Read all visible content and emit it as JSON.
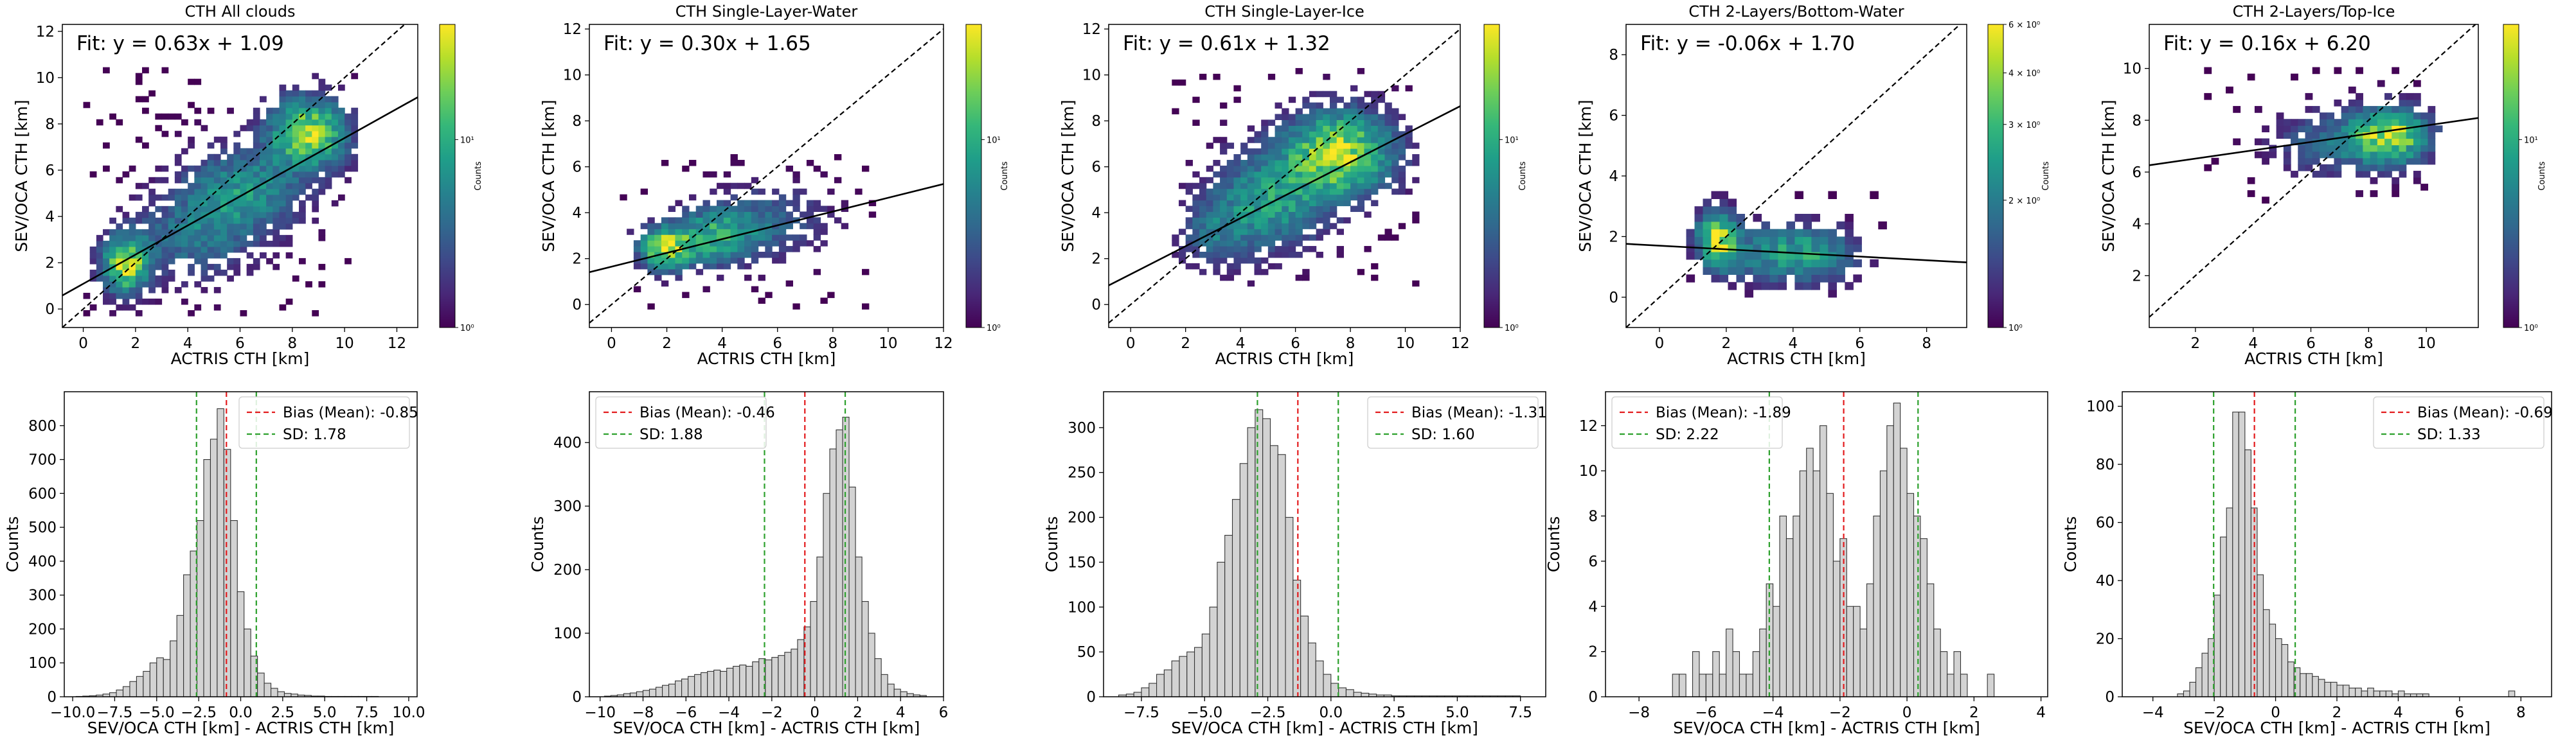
{
  "figure": {
    "scatter_panels": [
      {
        "title": "CTH All clouds",
        "fit_text": "Fit: y = 0.63x + 1.09",
        "xlabel": "ACTRIS CTH [km]",
        "ylabel": "SEV/OCA CTH [km]",
        "colorbar_label": "Counts",
        "colorbar_ticks": [
          "10⁰",
          "10¹"
        ]
      },
      {
        "title": "CTH Single-Layer-Water",
        "fit_text": "Fit: y = 0.30x + 1.65",
        "xlabel": "ACTRIS CTH [km]",
        "ylabel": "SEV/OCA CTH [km]",
        "colorbar_label": "Counts",
        "colorbar_ticks": [
          "10⁰",
          "10¹"
        ]
      },
      {
        "title": "CTH Single-Layer-Ice",
        "fit_text": "Fit: y = 0.61x + 1.32",
        "xlabel": "ACTRIS CTH [km]",
        "ylabel": "SEV/OCA CTH [km]",
        "colorbar_label": "Counts",
        "colorbar_ticks": [
          "10⁰",
          "10¹"
        ]
      },
      {
        "title": "CTH 2-Layers/Bottom-Water",
        "fit_text": "Fit: y = -0.06x + 1.70",
        "xlabel": "ACTRIS CTH [km]",
        "ylabel": "SEV/OCA CTH [km]",
        "colorbar_label": "Counts",
        "colorbar_ticks": [
          "10⁰",
          "2 × 10⁰",
          "3 × 10⁰",
          "4 × 10⁰",
          "6 × 10⁰"
        ]
      },
      {
        "title": "CTH 2-Layers/Top-Ice",
        "fit_text": "Fit: y = 0.16x + 6.20",
        "xlabel": "ACTRIS CTH [km]",
        "ylabel": "SEV/OCA CTH [km]",
        "colorbar_label": "Counts",
        "colorbar_ticks": [
          "10⁰",
          "10¹"
        ]
      }
    ],
    "hist_panels": [
      {
        "xlabel": "SEV/OCA CTH [km] - ACTRIS CTH [km]",
        "ylabel": "Counts",
        "bias_label": "Bias (Mean): -0.85",
        "sd_label": "SD: 1.78"
      },
      {
        "xlabel": "SEV/OCA CTH [km] - ACTRIS CTH [km]",
        "ylabel": "Counts",
        "bias_label": "Bias (Mean): -0.46",
        "sd_label": "SD: 1.88"
      },
      {
        "xlabel": "SEV/OCA CTH [km] - ACTRIS CTH [km]",
        "ylabel": "Counts",
        "bias_label": "Bias (Mean): -1.31",
        "sd_label": "SD: 1.60"
      },
      {
        "xlabel": "SEV/OCA CTH [km] - ACTRIS CTH [km]",
        "ylabel": "Counts",
        "bias_label": "Bias (Mean): -1.89",
        "sd_label": "SD: 2.22"
      },
      {
        "xlabel": "SEV/OCA CTH [km] - ACTRIS CTH [km]",
        "ylabel": "Counts",
        "bias_label": "Bias (Mean): -0.69",
        "sd_label": "SD: 1.33"
      }
    ]
  },
  "colors": {
    "bias_line": "#e31a1c",
    "sd_line": "#2ca02c",
    "bar_fill": "#d3d3d3",
    "bar_edge": "#333333",
    "viridis": [
      "#440154",
      "#482878",
      "#3e4989",
      "#31688e",
      "#26828e",
      "#1f9e89",
      "#35b779",
      "#6ece58",
      "#b5de2b",
      "#fde725"
    ]
  },
  "chart_data": [
    {
      "type": "heatmap",
      "title": "CTH All clouds",
      "xlabel": "ACTRIS CTH [km]",
      "ylabel": "SEV/OCA CTH [km]",
      "xlim": [
        -0.8,
        12.8
      ],
      "ylim": [
        -0.8,
        12.3
      ],
      "xticks": [
        0,
        2,
        4,
        6,
        8,
        10,
        12
      ],
      "yticks": [
        0,
        2,
        4,
        6,
        8,
        10,
        12
      ],
      "fit": {
        "slope": 0.63,
        "intercept": 1.09
      },
      "identity_line": true,
      "density_clusters": [
        {
          "x": 1.5,
          "y": 1.8,
          "sx": 0.6,
          "sy": 0.8,
          "w": 1.0
        },
        {
          "x": 8.5,
          "y": 7.5,
          "sx": 1.0,
          "sy": 1.0,
          "w": 0.95
        },
        {
          "x": 6.0,
          "y": 5.0,
          "sx": 1.5,
          "sy": 1.2,
          "w": 0.5
        },
        {
          "x": 4.0,
          "y": 3.0,
          "sx": 1.5,
          "sy": 1.2,
          "w": 0.35
        }
      ],
      "extent": {
        "x": [
          0.0,
          10.5
        ],
        "y": [
          -0.3,
          10.3
        ]
      },
      "colorbar": {
        "label": "Counts",
        "scale": "log",
        "ticks": [
          "10⁰",
          "10¹"
        ]
      }
    },
    {
      "type": "heatmap",
      "title": "CTH Single-Layer-Water",
      "xlabel": "ACTRIS CTH [km]",
      "ylabel": "SEV/OCA CTH [km]",
      "xlim": [
        -0.8,
        12.0
      ],
      "ylim": [
        -1.0,
        12.2
      ],
      "xticks": [
        0,
        2,
        4,
        6,
        8,
        10,
        12
      ],
      "yticks": [
        0,
        2,
        4,
        6,
        8,
        10,
        12
      ],
      "fit": {
        "slope": 0.3,
        "intercept": 1.65
      },
      "identity_line": true,
      "density_clusters": [
        {
          "x": 1.8,
          "y": 2.3,
          "sx": 0.6,
          "sy": 0.6,
          "w": 1.0
        },
        {
          "x": 3.5,
          "y": 2.8,
          "sx": 1.0,
          "sy": 0.8,
          "w": 0.6
        },
        {
          "x": 5.5,
          "y": 3.5,
          "sx": 1.4,
          "sy": 1.0,
          "w": 0.3
        }
      ],
      "extent": {
        "x": [
          0.3,
          9.5
        ],
        "y": [
          -0.2,
          6.5
        ]
      },
      "colorbar": {
        "label": "Counts",
        "scale": "log",
        "ticks": [
          "10⁰",
          "10¹"
        ]
      }
    },
    {
      "type": "heatmap",
      "title": "CTH Single-Layer-Ice",
      "xlabel": "ACTRIS CTH [km]",
      "ylabel": "SEV/OCA CTH [km]",
      "xlim": [
        -0.8,
        12.0
      ],
      "ylim": [
        -1.0,
        12.2
      ],
      "xticks": [
        0,
        2,
        4,
        6,
        8,
        10,
        12
      ],
      "yticks": [
        0,
        2,
        4,
        6,
        8,
        10,
        12
      ],
      "fit": {
        "slope": 0.61,
        "intercept": 1.32
      },
      "identity_line": true,
      "density_clusters": [
        {
          "x": 7.5,
          "y": 6.5,
          "sx": 1.3,
          "sy": 1.2,
          "w": 1.0
        },
        {
          "x": 5.0,
          "y": 4.5,
          "sx": 1.4,
          "sy": 1.4,
          "w": 0.55
        },
        {
          "x": 3.0,
          "y": 3.0,
          "sx": 1.0,
          "sy": 1.0,
          "w": 0.3
        }
      ],
      "extent": {
        "x": [
          1.5,
          10.5
        ],
        "y": [
          0.8,
          10.3
        ]
      },
      "colorbar": {
        "label": "Counts",
        "scale": "log",
        "ticks": [
          "10⁰",
          "10¹"
        ]
      }
    },
    {
      "type": "heatmap",
      "title": "CTH 2-Layers/Bottom-Water",
      "xlabel": "ACTRIS CTH [km]",
      "ylabel": "SEV/OCA CTH [km]",
      "xlim": [
        -1.0,
        9.2
      ],
      "ylim": [
        -1.0,
        9.0
      ],
      "xticks": [
        0,
        2,
        4,
        6,
        8
      ],
      "yticks": [
        0,
        2,
        4,
        6,
        8
      ],
      "fit": {
        "slope": -0.06,
        "intercept": 1.7
      },
      "identity_line": true,
      "density_clusters": [
        {
          "x": 1.6,
          "y": 1.8,
          "sx": 0.4,
          "sy": 0.6,
          "w": 1.0
        },
        {
          "x": 4.4,
          "y": 1.3,
          "sx": 0.9,
          "sy": 0.6,
          "w": 0.55
        },
        {
          "x": 2.8,
          "y": 1.3,
          "sx": 0.8,
          "sy": 0.6,
          "w": 0.35
        }
      ],
      "extent": {
        "x": [
          0.8,
          7.0
        ],
        "y": [
          0.0,
          3.5
        ]
      },
      "colorbar": {
        "label": "Counts",
        "scale": "log",
        "ticks": [
          "10⁰",
          "2 × 10⁰",
          "3 × 10⁰",
          "4 × 10⁰",
          "6 × 10⁰"
        ]
      }
    },
    {
      "type": "heatmap",
      "title": "CTH 2-Layers/Top-Ice",
      "xlabel": "ACTRIS CTH [km]",
      "ylabel": "SEV/OCA CTH [km]",
      "xlim": [
        0.4,
        11.8
      ],
      "ylim": [
        0.0,
        11.7
      ],
      "xticks": [
        2,
        4,
        6,
        8,
        10
      ],
      "yticks": [
        2,
        4,
        6,
        8,
        10
      ],
      "fit": {
        "slope": 0.16,
        "intercept": 6.2
      },
      "identity_line": true,
      "density_clusters": [
        {
          "x": 8.6,
          "y": 7.3,
          "sx": 0.9,
          "sy": 0.7,
          "w": 1.0
        },
        {
          "x": 6.5,
          "y": 7.0,
          "sx": 1.3,
          "sy": 0.8,
          "w": 0.3
        }
      ],
      "extent": {
        "x": [
          2.3,
          10.5
        ],
        "y": [
          4.8,
          10.0
        ]
      },
      "colorbar": {
        "label": "Counts",
        "scale": "log",
        "ticks": [
          "10⁰",
          "10¹"
        ]
      }
    },
    {
      "type": "bar",
      "xlabel": "SEV/OCA CTH [km] - ACTRIS CTH [km]",
      "ylabel": "Counts",
      "xlim": [
        -10.5,
        10.5
      ],
      "ylim": [
        0,
        900
      ],
      "xticks": [
        -10.0,
        -7.5,
        -5.0,
        -2.5,
        0.0,
        2.5,
        5.0,
        7.5,
        10.0
      ],
      "xtick_labels": [
        "−10.0",
        "−7.5",
        "−5.0",
        "−2.5",
        "0.0",
        "2.5",
        "5.0",
        "7.5",
        "10.0"
      ],
      "yticks": [
        0,
        100,
        200,
        300,
        400,
        500,
        600,
        700,
        800
      ],
      "bin_start": -9.8,
      "bin_width": 0.4,
      "values": [
        1,
        2,
        3,
        5,
        8,
        12,
        20,
        30,
        45,
        60,
        75,
        100,
        115,
        110,
        165,
        240,
        360,
        430,
        520,
        700,
        760,
        850,
        730,
        520,
        310,
        200,
        120,
        70,
        40,
        25,
        15,
        10,
        8,
        5,
        4,
        2,
        2,
        1,
        1,
        1,
        1,
        1,
        1,
        1,
        1
      ],
      "bias": -0.85,
      "sd": 1.78,
      "legend": [
        {
          "name": "Bias (Mean): -0.85",
          "style": "dashed-red"
        },
        {
          "name": "SD: 1.78",
          "style": "dashed-green"
        }
      ],
      "legend_position": "top-right"
    },
    {
      "type": "bar",
      "xlabel": "SEV/OCA CTH [km] - ACTRIS CTH [km]",
      "ylabel": "Counts",
      "xlim": [
        -10.5,
        6.0
      ],
      "ylim": [
        0,
        480
      ],
      "xticks": [
        -10,
        -8,
        -6,
        -4,
        -2,
        0,
        2,
        4,
        6
      ],
      "xtick_labels": [
        "−10",
        "−8",
        "−6",
        "−4",
        "−2",
        "0",
        "2",
        "4",
        "6"
      ],
      "yticks": [
        0,
        100,
        200,
        300,
        400
      ],
      "bin_start": -9.8,
      "bin_width": 0.3,
      "values": [
        1,
        2,
        3,
        5,
        6,
        8,
        10,
        12,
        15,
        18,
        20,
        25,
        28,
        32,
        35,
        38,
        40,
        42,
        40,
        45,
        48,
        50,
        48,
        55,
        60,
        58,
        62,
        65,
        70,
        75,
        90,
        110,
        150,
        220,
        320,
        390,
        420,
        440,
        330,
        220,
        150,
        100,
        60,
        35,
        20,
        12,
        8,
        5,
        3,
        2
      ],
      "bias": -0.46,
      "sd": 1.88,
      "legend": [
        {
          "name": "Bias (Mean): -0.46",
          "style": "dashed-red"
        },
        {
          "name": "SD: 1.88",
          "style": "dashed-green"
        }
      ],
      "legend_position": "top-left"
    },
    {
      "type": "bar",
      "xlabel": "SEV/OCA CTH [km] - ACTRIS CTH [km]",
      "ylabel": "Counts",
      "xlim": [
        -9.0,
        8.5
      ],
      "ylim": [
        0,
        340
      ],
      "xticks": [
        -7.5,
        -5.0,
        -2.5,
        0.0,
        2.5,
        5.0,
        7.5
      ],
      "xtick_labels": [
        "−7.5",
        "−5.0",
        "−2.5",
        "0.0",
        "2.5",
        "5.0",
        "7.5"
      ],
      "yticks": [
        0,
        50,
        100,
        150,
        200,
        250,
        300
      ],
      "bin_start": -8.4,
      "bin_width": 0.3,
      "values": [
        2,
        3,
        5,
        10,
        15,
        25,
        30,
        40,
        45,
        50,
        55,
        70,
        100,
        150,
        180,
        220,
        260,
        300,
        320,
        310,
        280,
        270,
        200,
        130,
        90,
        60,
        40,
        25,
        15,
        10,
        8,
        5,
        4,
        3,
        2,
        2,
        1,
        1,
        1,
        1,
        1,
        1,
        1,
        1,
        1,
        1,
        1,
        1,
        1,
        1,
        1,
        1,
        1
      ],
      "bias": -1.31,
      "sd": 1.6,
      "legend": [
        {
          "name": "Bias (Mean): -1.31",
          "style": "dashed-red"
        },
        {
          "name": "SD: 1.60",
          "style": "dashed-green"
        }
      ],
      "legend_position": "top-right"
    },
    {
      "type": "bar",
      "xlabel": "SEV/OCA CTH [km] - ACTRIS CTH [km]",
      "ylabel": "Counts",
      "xlim": [
        -9.0,
        4.2
      ],
      "ylim": [
        0,
        13.5
      ],
      "xticks": [
        -8,
        -6,
        -4,
        -2,
        0,
        2,
        4
      ],
      "xtick_labels": [
        "−8",
        "−6",
        "−4",
        "−2",
        "0",
        "2",
        "4"
      ],
      "yticks": [
        0,
        2,
        4,
        6,
        8,
        10,
        12
      ],
      "bin_start": -7.0,
      "bin_width": 0.2,
      "values": [
        1,
        1,
        0,
        2,
        1,
        1,
        2,
        1,
        3,
        2,
        1,
        1,
        2,
        3,
        5,
        4,
        8,
        7,
        8,
        10,
        11,
        10,
        12,
        9,
        6,
        7,
        4,
        4,
        3,
        5,
        8,
        10,
        12,
        13,
        11,
        9,
        8,
        7,
        5,
        3,
        2,
        1,
        2,
        1,
        0,
        0,
        0,
        1
      ],
      "bias": -1.89,
      "sd": 2.22,
      "legend": [
        {
          "name": "Bias (Mean): -1.89",
          "style": "dashed-red"
        },
        {
          "name": "SD: 2.22",
          "style": "dashed-green"
        }
      ],
      "legend_position": "top-left"
    },
    {
      "type": "bar",
      "xlabel": "SEV/OCA CTH [km] - ACTRIS CTH [km]",
      "ylabel": "Counts",
      "xlim": [
        -5.0,
        9.0
      ],
      "ylim": [
        0,
        105
      ],
      "xticks": [
        -4,
        -2,
        0,
        2,
        4,
        6,
        8
      ],
      "xtick_labels": [
        "−4",
        "−2",
        "0",
        "2",
        "4",
        "6",
        "8"
      ],
      "yticks": [
        0,
        20,
        40,
        60,
        80,
        100
      ],
      "bin_start": -3.2,
      "bin_width": 0.2,
      "values": [
        1,
        2,
        5,
        10,
        15,
        20,
        35,
        55,
        65,
        98,
        98,
        85,
        65,
        42,
        30,
        25,
        20,
        18,
        12,
        10,
        8,
        8,
        7,
        6,
        5,
        5,
        4,
        4,
        3,
        3,
        2,
        3,
        2,
        2,
        2,
        1,
        2,
        1,
        1,
        1,
        1,
        0,
        0,
        0,
        0,
        0,
        0,
        0,
        0,
        0,
        0,
        0,
        0,
        0,
        2
      ],
      "bias": -0.69,
      "sd": 1.33,
      "legend": [
        {
          "name": "Bias (Mean): -0.69",
          "style": "dashed-red"
        },
        {
          "name": "SD: 1.33",
          "style": "dashed-green"
        }
      ],
      "legend_position": "top-right"
    }
  ]
}
